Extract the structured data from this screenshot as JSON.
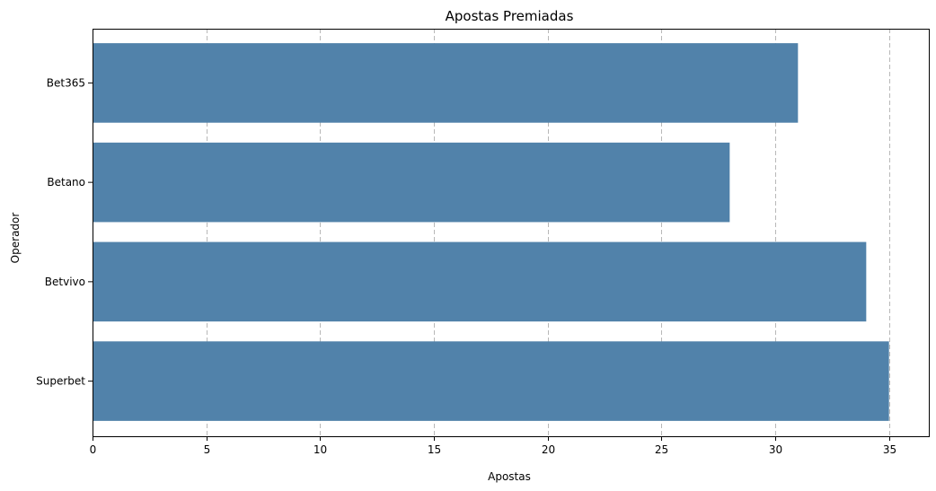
{
  "chart_data": {
    "type": "bar",
    "orientation": "horizontal",
    "title": "Apostas Premiadas",
    "xlabel": "Apostas",
    "ylabel": "Operador",
    "categories": [
      "Bet365",
      "Betano",
      "Betvivo",
      "Superbet"
    ],
    "values": [
      31,
      28,
      34,
      35
    ],
    "xlim": [
      0,
      36.75
    ],
    "xticks": [
      0,
      5,
      10,
      15,
      20,
      25,
      30,
      35
    ],
    "grid": "x-dashed",
    "bar_color": "#5182aa"
  }
}
